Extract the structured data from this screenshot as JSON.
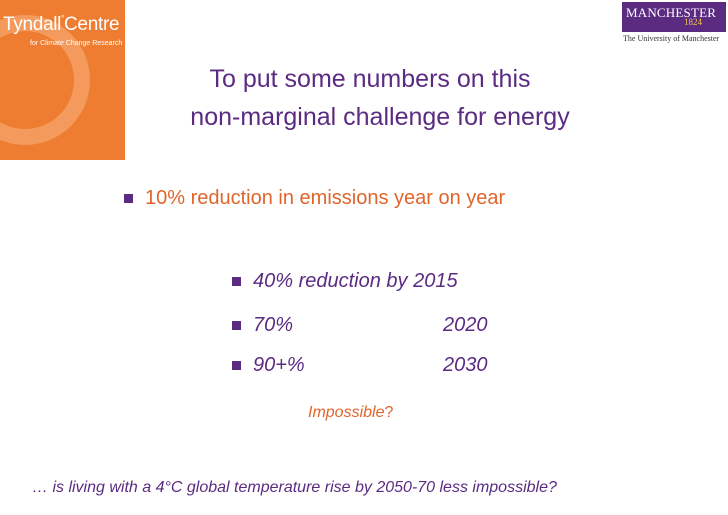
{
  "logos": {
    "tyndall": {
      "name": "Tyndall",
      "centre": "Centre",
      "mark": "°",
      "subtitle": "for Climate Change Research",
      "color": "#ee7d31"
    },
    "manchester": {
      "name": "MANCHESTER",
      "year": "1824",
      "university": "The University of Manchester",
      "color": "#5b2b82"
    }
  },
  "slide": {
    "title_line1": "To put some numbers on this",
    "title_line2": "non-marginal challenge for energy",
    "main_bullet": "10% reduction in emissions year on year",
    "targets": [
      {
        "reduction": "40% reduction by 2015",
        "year": ""
      },
      {
        "reduction": "70%",
        "year": "2020"
      },
      {
        "reduction": "90+%",
        "year": "2030"
      }
    ],
    "impossible_word": "Impossible",
    "impossible_mark": "?",
    "question": "… is living with a 4°C global temperature rise by 2050-70 less impossible?"
  },
  "colors": {
    "title": "#5b2b82",
    "accent": "#e0652b",
    "bullet": "#5b2b82"
  }
}
